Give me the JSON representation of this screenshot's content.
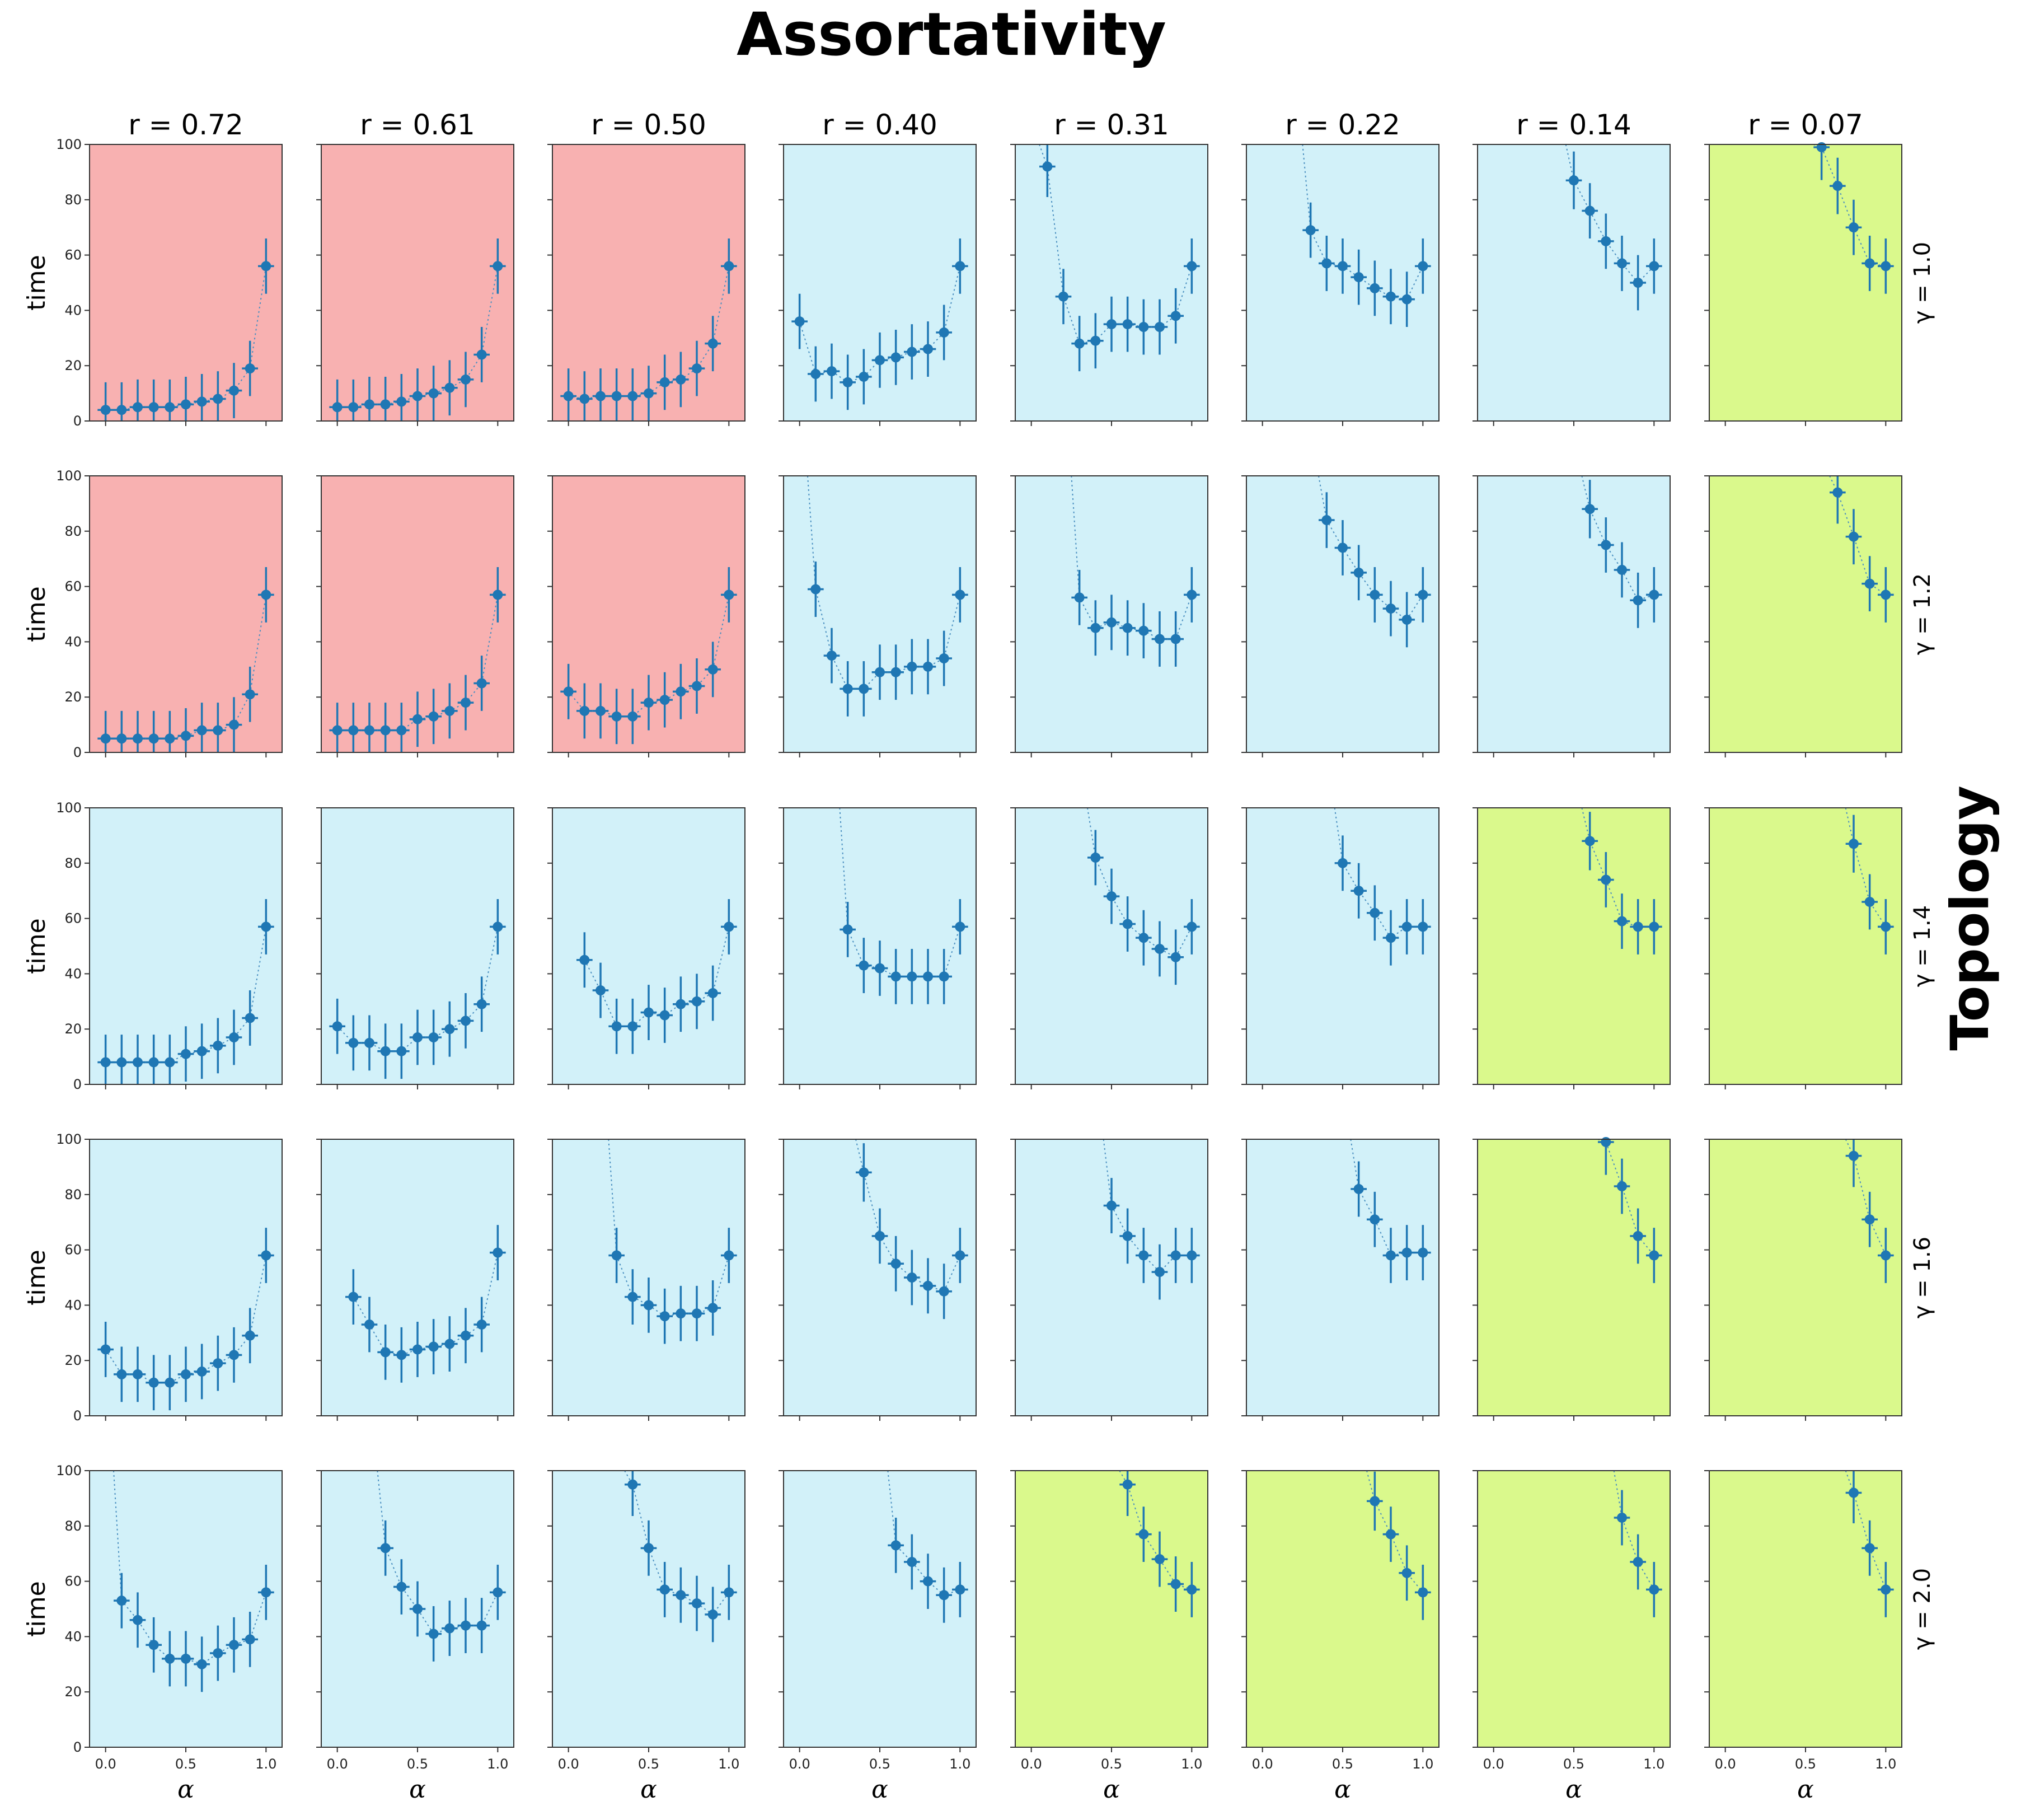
{
  "title": "Assortativity",
  "side_title": "Topology",
  "chart_data": {
    "type": "scatter",
    "layout": "grid of small-multiple panels",
    "xlabel": "α",
    "ylabel": "time",
    "xlim": [
      -0.1,
      1.1
    ],
    "ylim": [
      0,
      100
    ],
    "x_ticks": [
      0.0,
      0.5,
      1.0
    ],
    "x_tick_labels": [
      "0.0",
      "0.5",
      "1.0"
    ],
    "y_ticks": [
      0,
      20,
      40,
      60,
      80,
      100
    ],
    "y_tick_labels": [
      "0",
      "20",
      "40",
      "60",
      "80",
      "100"
    ],
    "grid": false,
    "columns": [
      "r = 0.72",
      "r = 0.61",
      "r = 0.50",
      "r = 0.40",
      "r = 0.31",
      "r = 0.22",
      "r = 0.14",
      "r = 0.07"
    ],
    "rows": [
      "γ = 1.0",
      "γ = 1.2",
      "γ = 1.4",
      "γ = 1.6",
      "γ = 2.0"
    ],
    "background_colors": {
      "red": "#f8b1b1",
      "blue": "#d2f1f9",
      "green": "#daf98c"
    },
    "marker_color": "#1f77b4",
    "backgrounds": [
      [
        "red",
        "red",
        "red",
        "blue",
        "blue",
        "blue",
        "blue",
        "green"
      ],
      [
        "red",
        "red",
        "red",
        "blue",
        "blue",
        "blue",
        "blue",
        "green"
      ],
      [
        "blue",
        "blue",
        "blue",
        "blue",
        "blue",
        "blue",
        "green",
        "green"
      ],
      [
        "blue",
        "blue",
        "blue",
        "blue",
        "blue",
        "blue",
        "green",
        "green"
      ],
      [
        "blue",
        "blue",
        "blue",
        "blue",
        "green",
        "green",
        "green",
        "green"
      ]
    ],
    "x": [
      0.0,
      0.1,
      0.2,
      0.3,
      0.4,
      0.5,
      0.6,
      0.7,
      0.8,
      0.9,
      1.0
    ],
    "y": [
      [
        [
          4,
          4,
          5,
          5,
          5,
          6,
          7,
          8,
          11,
          19,
          56
        ],
        [
          5,
          5,
          6,
          6,
          7,
          9,
          10,
          12,
          15,
          24,
          56
        ],
        [
          9,
          8,
          9,
          9,
          9,
          10,
          14,
          15,
          19,
          28,
          56
        ],
        [
          36,
          17,
          18,
          14,
          16,
          22,
          23,
          25,
          26,
          32,
          56
        ],
        [
          null,
          92,
          45,
          28,
          29,
          35,
          35,
          34,
          34,
          38,
          56
        ],
        [
          null,
          null,
          null,
          69,
          57,
          56,
          52,
          48,
          45,
          44,
          56
        ],
        [
          null,
          null,
          null,
          null,
          null,
          87,
          76,
          65,
          57,
          50,
          56
        ],
        [
          null,
          null,
          null,
          null,
          null,
          null,
          99,
          85,
          70,
          57,
          56
        ]
      ],
      [
        [
          5,
          5,
          5,
          5,
          5,
          6,
          8,
          8,
          10,
          21,
          57
        ],
        [
          8,
          8,
          8,
          8,
          8,
          12,
          13,
          15,
          18,
          25,
          57
        ],
        [
          22,
          15,
          15,
          13,
          13,
          18,
          19,
          22,
          24,
          30,
          57
        ],
        [
          null,
          59,
          35,
          23,
          23,
          29,
          29,
          31,
          31,
          34,
          57
        ],
        [
          null,
          null,
          null,
          56,
          45,
          47,
          45,
          44,
          41,
          41,
          57
        ],
        [
          null,
          null,
          null,
          null,
          84,
          74,
          65,
          57,
          52,
          48,
          57
        ],
        [
          null,
          null,
          null,
          null,
          null,
          null,
          88,
          75,
          66,
          55,
          57
        ],
        [
          null,
          null,
          null,
          null,
          null,
          null,
          null,
          94,
          78,
          61,
          57
        ]
      ],
      [
        [
          8,
          8,
          8,
          8,
          8,
          11,
          12,
          14,
          17,
          24,
          57
        ],
        [
          21,
          15,
          15,
          12,
          12,
          17,
          17,
          20,
          23,
          29,
          57
        ],
        [
          null,
          45,
          34,
          21,
          21,
          26,
          25,
          29,
          30,
          33,
          57
        ],
        [
          null,
          null,
          null,
          56,
          43,
          42,
          39,
          39,
          39,
          39,
          57
        ],
        [
          null,
          null,
          null,
          null,
          82,
          68,
          58,
          53,
          49,
          46,
          57
        ],
        [
          null,
          null,
          null,
          null,
          null,
          80,
          70,
          62,
          53,
          57,
          57
        ],
        [
          null,
          null,
          null,
          null,
          null,
          null,
          88,
          74,
          59,
          57,
          57
        ],
        [
          null,
          null,
          null,
          null,
          null,
          null,
          null,
          null,
          87,
          66,
          57
        ]
      ],
      [
        [
          24,
          15,
          15,
          12,
          12,
          15,
          16,
          19,
          22,
          29,
          58
        ],
        [
          null,
          43,
          33,
          23,
          22,
          24,
          25,
          26,
          29,
          33,
          59
        ],
        [
          null,
          null,
          null,
          58,
          43,
          40,
          36,
          37,
          37,
          39,
          58
        ],
        [
          null,
          null,
          null,
          null,
          88,
          65,
          55,
          50,
          47,
          45,
          58
        ],
        [
          null,
          null,
          null,
          null,
          null,
          76,
          65,
          58,
          52,
          58,
          58
        ],
        [
          null,
          null,
          null,
          null,
          null,
          null,
          82,
          71,
          58,
          59,
          59
        ],
        [
          null,
          null,
          null,
          null,
          null,
          null,
          null,
          99,
          83,
          65,
          58
        ],
        [
          null,
          null,
          null,
          null,
          null,
          null,
          null,
          null,
          94,
          71,
          58
        ]
      ],
      [
        [
          null,
          53,
          46,
          37,
          32,
          32,
          30,
          34,
          37,
          39,
          56
        ],
        [
          null,
          null,
          null,
          72,
          58,
          50,
          41,
          43,
          44,
          44,
          56
        ],
        [
          null,
          null,
          null,
          null,
          95,
          72,
          57,
          55,
          52,
          48,
          56
        ],
        [
          null,
          null,
          null,
          null,
          null,
          null,
          73,
          67,
          60,
          55,
          57
        ],
        [
          null,
          null,
          null,
          null,
          null,
          null,
          95,
          77,
          68,
          59,
          57
        ],
        [
          null,
          null,
          null,
          null,
          null,
          null,
          null,
          89,
          77,
          63,
          56
        ],
        [
          null,
          null,
          null,
          null,
          null,
          null,
          null,
          null,
          83,
          67,
          57
        ],
        [
          null,
          null,
          null,
          null,
          null,
          null,
          null,
          null,
          92,
          72,
          57
        ]
      ]
    ]
  }
}
